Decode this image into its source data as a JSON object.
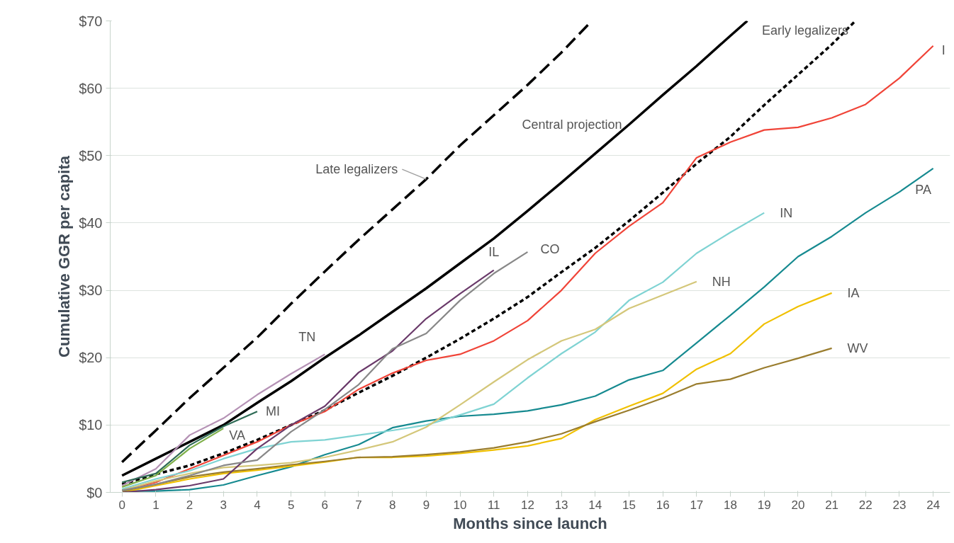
{
  "chart_data": {
    "type": "line",
    "xlabel": "Months since launch",
    "ylabel": "Cumulative GGR per capita",
    "x": [
      0,
      1,
      2,
      3,
      4,
      5,
      6,
      7,
      8,
      9,
      10,
      11,
      12,
      13,
      14,
      15,
      16,
      17,
      18,
      19,
      20,
      21,
      22,
      23,
      24
    ],
    "xlim": [
      -0.35,
      24.5
    ],
    "ylim": [
      0,
      70
    ],
    "xticks": [
      0,
      1,
      2,
      3,
      4,
      5,
      6,
      7,
      8,
      9,
      10,
      11,
      12,
      13,
      14,
      15,
      16,
      17,
      18,
      19,
      20,
      21,
      22,
      23,
      24
    ],
    "yticks": [
      {
        "value": 0,
        "label": "$0"
      },
      {
        "value": 10,
        "label": "$10"
      },
      {
        "value": 20,
        "label": "$20"
      },
      {
        "value": 30,
        "label": "$30"
      },
      {
        "value": 40,
        "label": "$40"
      },
      {
        "value": 50,
        "label": "$50"
      },
      {
        "value": 60,
        "label": "$60"
      },
      {
        "value": 70,
        "label": "$70"
      }
    ],
    "grid": "y",
    "marker": "none",
    "series": [
      {
        "name": "Central projection",
        "color": "#000000",
        "line_style": "solid",
        "x": [
          0,
          1,
          2,
          3,
          4,
          5,
          6,
          7,
          8,
          9,
          10,
          11,
          12,
          13,
          14,
          15,
          16,
          17,
          18,
          18.5
        ],
        "values": [
          2.5,
          5,
          7.5,
          10,
          13.3,
          16.5,
          20,
          23.3,
          26.8,
          30.3,
          34,
          37.7,
          41.8,
          46,
          50.3,
          54.6,
          59,
          63.3,
          67.8,
          70
        ]
      },
      {
        "name": "Late legalizers",
        "color": "#000000",
        "line_style": "dashed",
        "x": [
          0,
          1,
          2,
          3,
          4,
          5,
          6,
          7,
          8,
          9,
          10,
          11,
          12,
          13,
          13.9
        ],
        "values": [
          4.5,
          9.2,
          14,
          18.5,
          23,
          28,
          32.8,
          37.5,
          42,
          46.5,
          51.5,
          56,
          60.5,
          65.3,
          70
        ]
      },
      {
        "name": "Early legalizers",
        "color": "#000000",
        "line_style": "dotted",
        "x": [
          0,
          1,
          2,
          3,
          4,
          5,
          6,
          7,
          8,
          9,
          10,
          11,
          12,
          13,
          14,
          15,
          16,
          17,
          18,
          19,
          20,
          21,
          21.7
        ],
        "values": [
          1.2,
          2.7,
          4,
          5.8,
          7.8,
          10,
          12.2,
          14.8,
          17.3,
          20,
          22.8,
          25.8,
          29,
          32.7,
          36.3,
          40.3,
          44.5,
          48.8,
          52.8,
          57.5,
          62,
          66.5,
          70
        ]
      },
      {
        "name": "I",
        "color": "#f04438",
        "values": [
          0.3,
          1.5,
          3.5,
          5.5,
          7.5,
          10,
          12,
          15.3,
          17.7,
          19.6,
          20.5,
          22.5,
          25.5,
          30,
          35.5,
          39.5,
          43,
          49.7,
          52,
          53.8,
          54.2,
          55.6,
          57.6,
          61.5,
          66.3
        ]
      },
      {
        "name": "PA",
        "color": "#168a90",
        "values": [
          0.2,
          0.2,
          0.4,
          1.1,
          2.5,
          3.8,
          5.6,
          7.1,
          9.6,
          10.6,
          11.3,
          11.6,
          12.1,
          13,
          14.3,
          16.7,
          18.1,
          22.2,
          26.3,
          30.5,
          35,
          38,
          41.5,
          44.6,
          48.1
        ]
      },
      {
        "name": "IN",
        "color": "#7fd3d3",
        "x": [
          0,
          1,
          2,
          3,
          4,
          5,
          6,
          7,
          8,
          9,
          10,
          11,
          12,
          13,
          14,
          15,
          16,
          17,
          18,
          19
        ],
        "values": [
          0.5,
          2,
          3.2,
          5,
          6.5,
          7.5,
          7.8,
          8.5,
          9.2,
          10,
          11.5,
          13.1,
          17,
          20.6,
          23.8,
          28.5,
          31.2,
          35.5,
          38.6,
          41.5
        ]
      },
      {
        "name": "NH",
        "color": "#d4c77a",
        "x": [
          0,
          1,
          2,
          3,
          4,
          5,
          6,
          7,
          8,
          9,
          10,
          11,
          12,
          13,
          14,
          15,
          16,
          17
        ],
        "values": [
          0.3,
          1.7,
          2.8,
          3.7,
          4,
          4.4,
          5.2,
          6.3,
          7.5,
          9.7,
          13,
          16.4,
          19.7,
          22.5,
          24.2,
          27.3,
          29.3,
          31.3
        ]
      },
      {
        "name": "IA",
        "color": "#f0c000",
        "x": [
          0,
          1,
          2,
          3,
          4,
          5,
          6,
          7,
          8,
          9,
          10,
          11,
          12,
          13,
          14,
          15,
          16,
          17,
          18,
          19,
          20,
          21
        ],
        "values": [
          0,
          1,
          2,
          2.8,
          3.3,
          3.9,
          4.5,
          5.2,
          5.2,
          5.4,
          5.8,
          6.3,
          6.9,
          8,
          10.8,
          12.8,
          14.7,
          18.3,
          20.6,
          25,
          27.6,
          29.6
        ]
      },
      {
        "name": "WV",
        "color": "#9a7d2e",
        "x": [
          0,
          1,
          2,
          3,
          4,
          5,
          6,
          7,
          8,
          9,
          10,
          11,
          12,
          13,
          14,
          15,
          16,
          17,
          18,
          19,
          20,
          21
        ],
        "values": [
          0.2,
          1.2,
          2.3,
          3,
          3.5,
          4.1,
          4.6,
          5.2,
          5.3,
          5.6,
          6,
          6.6,
          7.5,
          8.7,
          10.5,
          12.2,
          14,
          16.1,
          16.8,
          18.5,
          19.9,
          21.4
        ]
      },
      {
        "name": "IL",
        "color": "#6a3a6a",
        "x": [
          0,
          1,
          2,
          3,
          4,
          5,
          6,
          7,
          8,
          9,
          10,
          11
        ],
        "values": [
          0,
          0.4,
          1,
          2,
          6.5,
          10,
          12.8,
          17.8,
          21,
          25.8,
          29.5,
          33
        ]
      },
      {
        "name": "CO",
        "color": "#888888",
        "x": [
          0,
          1,
          2,
          3,
          4,
          5,
          6,
          7,
          8,
          9,
          10,
          11,
          12
        ],
        "values": [
          0.3,
          1.2,
          2.5,
          4,
          4.8,
          9,
          12.3,
          16,
          21.3,
          23.6,
          28.5,
          32.5,
          35.7
        ]
      },
      {
        "name": "TN",
        "color": "#b592b5",
        "x": [
          0,
          1,
          2,
          3,
          4,
          5,
          6
        ],
        "values": [
          1,
          3.5,
          8.5,
          11,
          14.5,
          17.6,
          20.5
        ]
      },
      {
        "name": "MI",
        "color": "#2e6b55",
        "x": [
          0,
          1,
          2,
          3,
          4
        ],
        "values": [
          1.5,
          2.8,
          7,
          9.8,
          12
        ]
      },
      {
        "name": "VA",
        "color": "#7fb04a",
        "x": [
          0,
          1,
          2,
          3
        ],
        "values": [
          0.8,
          2.5,
          6.5,
          9.5
        ]
      }
    ]
  }
}
